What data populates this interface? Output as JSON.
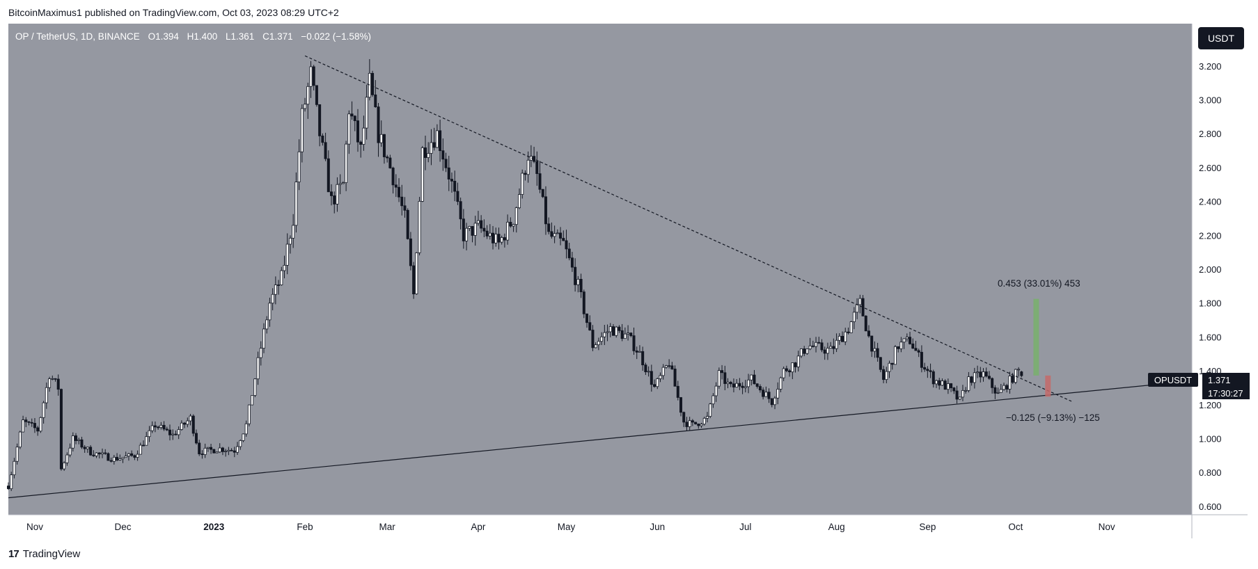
{
  "header": {
    "published": "BitcoinMaximus1 published on TradingView.com, Oct 03, 2023 08:29 UTC+2"
  },
  "legend": {
    "symbol": "OP / TetherUS, 1D, BINANCE",
    "o_label": "O",
    "o_value": "1.394",
    "h_label": "H",
    "h_value": "1.400",
    "l_label": "L",
    "l_value": "1.361",
    "c_label": "C",
    "c_value": "1.371",
    "change": "−0.022 (−1.58%)"
  },
  "toolbar": {
    "currency": "USDT"
  },
  "price_tag": {
    "symbol": "OPUSDT",
    "value": "1.371",
    "countdown": "17:30:27"
  },
  "measure_up": {
    "text": "0.453 (33.01%) 453"
  },
  "measure_down": {
    "text": "−0.125 (−9.13%) −125"
  },
  "footer": {
    "brand": "TradingView",
    "logo_glyph": "17"
  },
  "colors": {
    "background": "#9598a1",
    "candle": "#131722",
    "up_measure": "#79b06c",
    "down_measure": "#c66a6a",
    "trendline": "#131722"
  },
  "chart_data": {
    "type": "candlestick",
    "title": "OP / TetherUS, 1D, BINANCE",
    "xlabel": "",
    "ylabel": "",
    "ylim": [
      0.55,
      3.45
    ],
    "xlim": [
      "2022-10-23",
      "2023-11-30"
    ],
    "x_ticks": [
      {
        "date": "2022-11-01",
        "label": "Nov"
      },
      {
        "date": "2022-12-01",
        "label": "Dec"
      },
      {
        "date": "2023-01-01",
        "label": "2023"
      },
      {
        "date": "2023-02-01",
        "label": "Feb"
      },
      {
        "date": "2023-03-01",
        "label": "Mar"
      },
      {
        "date": "2023-04-01",
        "label": "Apr"
      },
      {
        "date": "2023-05-01",
        "label": "May"
      },
      {
        "date": "2023-06-01",
        "label": "Jun"
      },
      {
        "date": "2023-07-01",
        "label": "Jul"
      },
      {
        "date": "2023-08-01",
        "label": "Aug"
      },
      {
        "date": "2023-09-01",
        "label": "Sep"
      },
      {
        "date": "2023-10-01",
        "label": "Oct"
      },
      {
        "date": "2023-11-01",
        "label": "Nov"
      }
    ],
    "y_ticks": [
      "0.600",
      "0.800",
      "1.000",
      "1.200",
      "1.400",
      "1.600",
      "1.800",
      "2.000",
      "2.200",
      "2.400",
      "2.600",
      "2.800",
      "3.000",
      "3.200"
    ],
    "price_path": [
      [
        "2022-10-23",
        0.72
      ],
      [
        "2022-10-28",
        1.1
      ],
      [
        "2022-11-02",
        1.05
      ],
      [
        "2022-11-06",
        1.38
      ],
      [
        "2022-11-09",
        1.3
      ],
      [
        "2022-11-10",
        0.82
      ],
      [
        "2022-11-14",
        1.0
      ],
      [
        "2022-11-20",
        0.92
      ],
      [
        "2022-11-28",
        0.88
      ],
      [
        "2022-12-05",
        0.9
      ],
      [
        "2022-12-12",
        1.08
      ],
      [
        "2022-12-18",
        1.02
      ],
      [
        "2022-12-24",
        1.12
      ],
      [
        "2022-12-27",
        0.92
      ],
      [
        "2023-01-03",
        0.94
      ],
      [
        "2023-01-08",
        0.93
      ],
      [
        "2023-01-12",
        1.08
      ],
      [
        "2023-01-16",
        1.45
      ],
      [
        "2023-01-20",
        1.8
      ],
      [
        "2023-01-24",
        1.95
      ],
      [
        "2023-01-28",
        2.3
      ],
      [
        "2023-01-31",
        2.9
      ],
      [
        "2023-02-03",
        3.15
      ],
      [
        "2023-02-06",
        2.8
      ],
      [
        "2023-02-10",
        2.4
      ],
      [
        "2023-02-14",
        2.5
      ],
      [
        "2023-02-16",
        2.95
      ],
      [
        "2023-02-20",
        2.7
      ],
      [
        "2023-02-23",
        3.1
      ],
      [
        "2023-02-26",
        2.8
      ],
      [
        "2023-03-03",
        2.55
      ],
      [
        "2023-03-07",
        2.3
      ],
      [
        "2023-03-10",
        1.85
      ],
      [
        "2023-03-13",
        2.7
      ],
      [
        "2023-03-18",
        2.8
      ],
      [
        "2023-03-23",
        2.5
      ],
      [
        "2023-03-27",
        2.2
      ],
      [
        "2023-04-01",
        2.25
      ],
      [
        "2023-04-08",
        2.15
      ],
      [
        "2023-04-13",
        2.3
      ],
      [
        "2023-04-18",
        2.68
      ],
      [
        "2023-04-21",
        2.55
      ],
      [
        "2023-04-25",
        2.2
      ],
      [
        "2023-04-30",
        2.15
      ],
      [
        "2023-05-05",
        1.9
      ],
      [
        "2023-05-10",
        1.55
      ],
      [
        "2023-05-16",
        1.65
      ],
      [
        "2023-05-22",
        1.6
      ],
      [
        "2023-05-26",
        1.5
      ],
      [
        "2023-05-31",
        1.3
      ],
      [
        "2023-06-05",
        1.45
      ],
      [
        "2023-06-10",
        1.1
      ],
      [
        "2023-06-13",
        1.08
      ],
      [
        "2023-06-18",
        1.12
      ],
      [
        "2023-06-22",
        1.38
      ],
      [
        "2023-06-26",
        1.3
      ],
      [
        "2023-07-03",
        1.35
      ],
      [
        "2023-07-10",
        1.22
      ],
      [
        "2023-07-14",
        1.4
      ],
      [
        "2023-07-18",
        1.45
      ],
      [
        "2023-07-22",
        1.55
      ],
      [
        "2023-07-30",
        1.52
      ],
      [
        "2023-08-05",
        1.65
      ],
      [
        "2023-08-09",
        1.8
      ],
      [
        "2023-08-12",
        1.6
      ],
      [
        "2023-08-17",
        1.35
      ],
      [
        "2023-08-22",
        1.55
      ],
      [
        "2023-08-26",
        1.58
      ],
      [
        "2023-08-30",
        1.45
      ],
      [
        "2023-09-03",
        1.35
      ],
      [
        "2023-09-08",
        1.3
      ],
      [
        "2023-09-12",
        1.22
      ],
      [
        "2023-09-15",
        1.35
      ],
      [
        "2023-09-20",
        1.38
      ],
      [
        "2023-09-25",
        1.26
      ],
      [
        "2023-09-28",
        1.32
      ],
      [
        "2023-10-02",
        1.4
      ],
      [
        "2023-10-03",
        1.371
      ]
    ],
    "lines": [
      {
        "style": "dashed",
        "from": {
          "date": "2023-02-01",
          "price": 3.26
        },
        "to": {
          "date": "2023-10-20",
          "price": 1.22
        }
      },
      {
        "style": "solid",
        "from": {
          "date": "2022-10-23",
          "price": 0.65
        },
        "to": {
          "date": "2023-11-30",
          "price": 1.34
        }
      }
    ],
    "measures": [
      {
        "label": "0.453 (33.01%) 453",
        "direction": "up",
        "date": "2023-10-08",
        "from": 1.372,
        "to": 1.825
      },
      {
        "label": "−0.125 (−9.13%) −125",
        "direction": "down",
        "date": "2023-10-12",
        "from": 1.372,
        "to": 1.247
      }
    ],
    "last": {
      "symbol": "OPUSDT",
      "price": 1.371
    }
  }
}
